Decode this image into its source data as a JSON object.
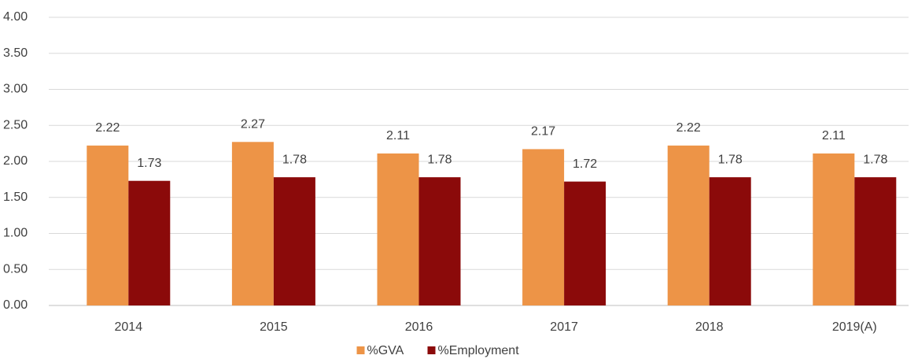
{
  "chart_data": {
    "type": "bar",
    "categories": [
      "2014",
      "2015",
      "2016",
      "2017",
      "2018",
      "2019(A)"
    ],
    "series": [
      {
        "name": "%GVA",
        "color": "#ed9447",
        "values": [
          2.22,
          2.27,
          2.11,
          2.17,
          2.22,
          2.11
        ]
      },
      {
        "name": "%Employment",
        "color": "#8b0a0a",
        "values": [
          1.73,
          1.78,
          1.78,
          1.72,
          1.78,
          1.78
        ]
      }
    ],
    "ylim": [
      0,
      4
    ],
    "yticks": [
      {
        "value": 0,
        "label": "0.00"
      },
      {
        "value": 0.5,
        "label": "0.50"
      },
      {
        "value": 1,
        "label": "1.00"
      },
      {
        "value": 1.5,
        "label": "1.50"
      },
      {
        "value": 2,
        "label": "2.00"
      },
      {
        "value": 2.5,
        "label": "2.50"
      },
      {
        "value": 3,
        "label": "3.00"
      },
      {
        "value": 3.5,
        "label": "3.50"
      },
      {
        "value": 4,
        "label": "4.00"
      }
    ],
    "grid": true,
    "legend": "bottom"
  }
}
